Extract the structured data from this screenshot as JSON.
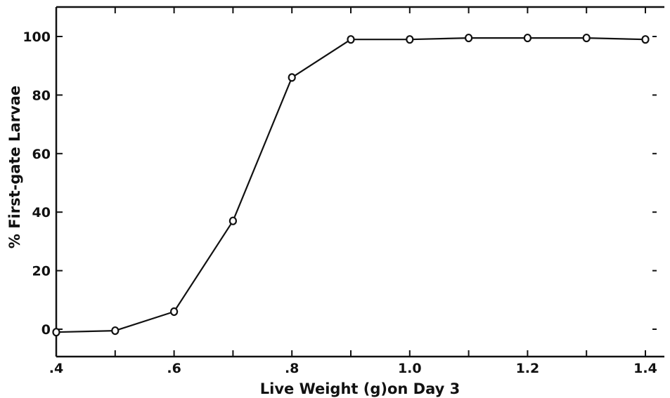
{
  "chart_data": {
    "type": "line",
    "title": "",
    "xlabel": "Live Weight (g)on Day 3",
    "ylabel": "% First-gate Larvae",
    "xlim": [
      0.4,
      1.45
    ],
    "ylim": [
      -10,
      111
    ],
    "x_ticks": [
      0.4,
      0.5,
      0.6,
      0.7,
      0.8,
      0.9,
      1.0,
      1.1,
      1.2,
      1.3,
      1.4
    ],
    "x_tick_labels": [
      ".4",
      ".6",
      ".8",
      "1.0",
      "1.2",
      "1.4"
    ],
    "x_tick_label_values": [
      0.4,
      0.6,
      0.8,
      1.0,
      1.2,
      1.4
    ],
    "y_ticks": [
      0,
      20,
      40,
      60,
      80,
      100
    ],
    "y_tick_labels": [
      "0",
      "20",
      "40",
      "60",
      "80",
      "100"
    ],
    "grid": false,
    "legend": "none",
    "marker": "open-circle",
    "color": "#111111",
    "series": [
      {
        "x": [
          0.4,
          0.5,
          0.6,
          0.7,
          0.8,
          0.9,
          1.0,
          1.1,
          1.2,
          1.3,
          1.4
        ],
        "y": [
          -1,
          -0.5,
          6,
          37,
          86,
          99,
          99,
          99.5,
          99.5,
          99.5,
          99
        ]
      }
    ]
  }
}
